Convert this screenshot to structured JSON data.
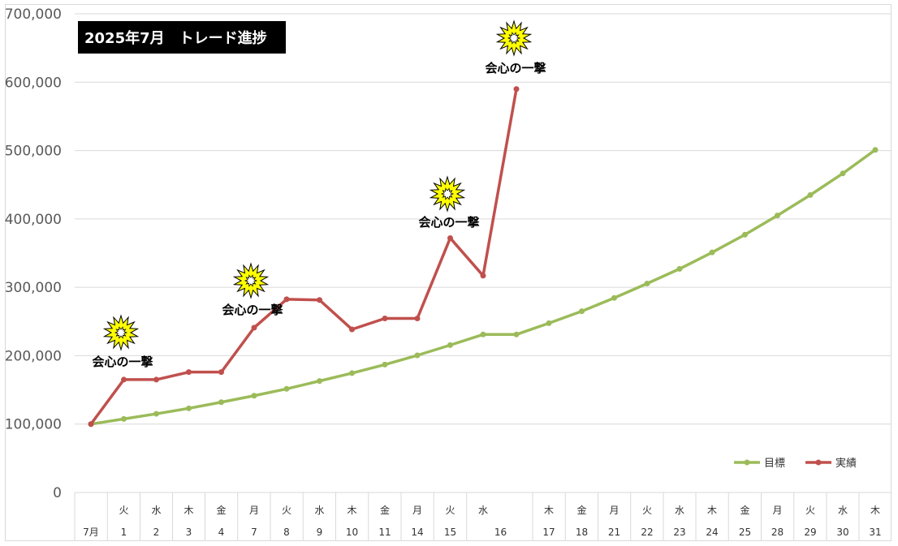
{
  "chart_data": {
    "type": "line",
    "title": "2025年7月　トレード進捗",
    "ylim": [
      0,
      700000
    ],
    "yticks": [
      "0",
      "100,000",
      "200,000",
      "300,000",
      "400,000",
      "500,000",
      "600,000",
      "700,000"
    ],
    "ytick_values": [
      0,
      100000,
      200000,
      300000,
      400000,
      500000,
      600000,
      700000
    ],
    "categories": [
      {
        "wd": "",
        "day": "7月"
      },
      {
        "wd": "火",
        "day": "1"
      },
      {
        "wd": "水",
        "day": "2"
      },
      {
        "wd": "木",
        "day": "3"
      },
      {
        "wd": "金",
        "day": "4"
      },
      {
        "wd": "月",
        "day": "7"
      },
      {
        "wd": "火",
        "day": "8"
      },
      {
        "wd": "水",
        "day": "9"
      },
      {
        "wd": "木",
        "day": "10"
      },
      {
        "wd": "金",
        "day": "11"
      },
      {
        "wd": "月",
        "day": "14"
      },
      {
        "wd": "火",
        "day": "15"
      },
      {
        "wd": "水",
        "day": "16"
      },
      {
        "wd": "",
        "day": ""
      },
      {
        "wd": "木",
        "day": "17"
      },
      {
        "wd": "金",
        "day": "18"
      },
      {
        "wd": "月",
        "day": "21"
      },
      {
        "wd": "火",
        "day": "22"
      },
      {
        "wd": "水",
        "day": "23"
      },
      {
        "wd": "木",
        "day": "24"
      },
      {
        "wd": "金",
        "day": "25"
      },
      {
        "wd": "月",
        "day": "28"
      },
      {
        "wd": "火",
        "day": "29"
      },
      {
        "wd": "水",
        "day": "30"
      },
      {
        "wd": "木",
        "day": "31"
      }
    ],
    "series": [
      {
        "name": "目標",
        "color": "#9bbb59",
        "values": [
          100000,
          107500,
          115000,
          123000,
          132000,
          141500,
          151500,
          163000,
          174500,
          187000,
          200500,
          215500,
          231000,
          231000,
          247500,
          265000,
          284500,
          305500,
          327000,
          351000,
          377000,
          405000,
          435000,
          466500,
          501000
        ]
      },
      {
        "name": "実績",
        "color": "#c0504d",
        "values": [
          100000,
          165000,
          165000,
          176000,
          176000,
          241000,
          282500,
          281500,
          238500,
          254500,
          254500,
          372000,
          317000,
          590000,
          null,
          null,
          null,
          null,
          null,
          null,
          null,
          null,
          null,
          null,
          null
        ]
      }
    ],
    "annotations": [
      {
        "text": "会心の一撃",
        "index": 1,
        "value": 165000
      },
      {
        "text": "会心の一撃",
        "index": 5,
        "value": 241000
      },
      {
        "text": "会心の一撃",
        "index": 11,
        "value": 372000
      },
      {
        "text": "会心の一撃",
        "index": 13,
        "value": 590000
      }
    ],
    "legend_position": "bottom-right",
    "grid": true
  }
}
